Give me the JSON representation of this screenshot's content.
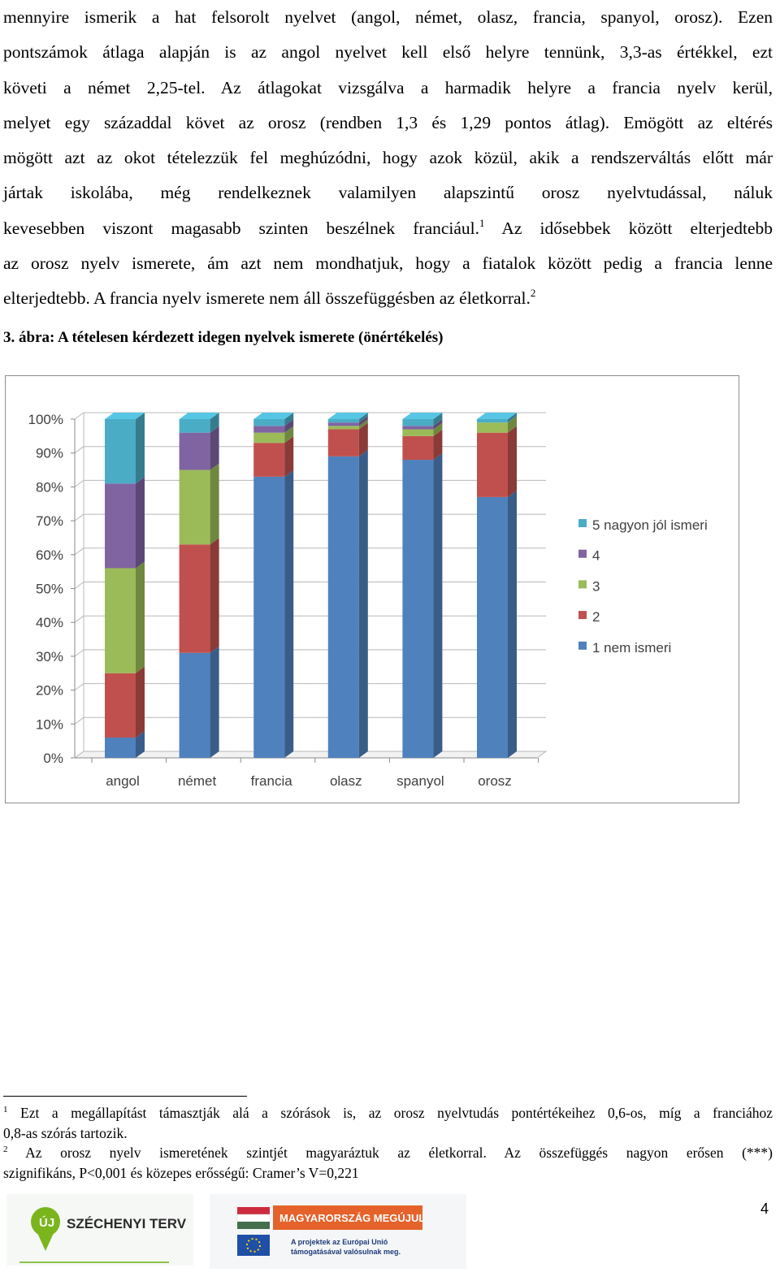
{
  "body_lines": [
    "mennyire ismerik a hat felsorolt nyelvet (angol, német, olasz, francia, spanyol, orosz). Ezen",
    "pontszámok átlaga alapján is az angol nyelvet kell első helyre tennünk, 3,3-as értékkel, ezt",
    "követi a német 2,25-tel. Az átlagokat vizsgálva a harmadik helyre a francia nyelv kerül,",
    "melyet egy századdal követ az orosz (rendben 1,3 és 1,29 pontos átlag). Emögött az eltérés",
    "mögött azt az okot tételezzük fel meghúzódni, hogy azok közül, akik a rendszerváltás előtt már",
    "jártak iskolába, még rendelkeznek valamilyen alapszintű orosz nyelvtudással, náluk",
    "kevesebben viszont magasabb szinten beszélnek franciául.",
    "Az idősebbek között elterjedtebb",
    "az orosz nyelv ismerete, ám azt nem mondhatjuk, hogy a fiatalok között pedig a francia lenne",
    "elterjedtebb. A francia nyelv ismerete nem áll összefüggésben az életkorral."
  ],
  "footnote_marks": [
    "1",
    "2"
  ],
  "figure_caption": "3. ábra: A tételesen kérdezett idegen nyelvek ismerete (önértékelés)",
  "chart_data": {
    "type": "bar",
    "stacked": true,
    "three_d": true,
    "categories": [
      "angol",
      "német",
      "francia",
      "olasz",
      "spanyol",
      "orosz"
    ],
    "series": [
      {
        "name": "1 nem ismeri",
        "color": "#4f81bd",
        "values": [
          6,
          31,
          83,
          89,
          88,
          77
        ]
      },
      {
        "name": "2",
        "color": "#c0504d",
        "values": [
          19,
          32,
          10,
          8,
          7,
          19
        ]
      },
      {
        "name": "3",
        "color": "#9bbb59",
        "values": [
          31,
          22,
          3,
          1,
          2,
          3
        ]
      },
      {
        "name": "4",
        "color": "#8064a2",
        "values": [
          25,
          11,
          2,
          1,
          1,
          0
        ]
      },
      {
        "name": "5 nagyon jól ismeri",
        "color": "#4bacc6",
        "values": [
          19,
          4,
          2,
          1,
          2,
          1
        ]
      }
    ],
    "yticks": [
      "0%",
      "10%",
      "20%",
      "30%",
      "40%",
      "50%",
      "60%",
      "70%",
      "80%",
      "90%",
      "100%"
    ],
    "ylim": [
      0,
      100
    ],
    "legend_position": "right"
  },
  "footnotes": [
    {
      "mark": "1",
      "lines": [
        "Ezt a megállapítást támasztják alá a szórások is, az orosz nyelvtudás pontértékeihez 0,6-os, míg a franciához",
        "0,8-as szórás tartozik."
      ]
    },
    {
      "mark": "2",
      "lines": [
        "Az orosz nyelv ismeretének szintjét magyaráztuk az életkorral. Az összefüggés nagyon erősen (***)",
        "szignifikáns, P<0,001 és közepes erősségű: Cramer’s V=0,221"
      ]
    }
  ],
  "logos": {
    "left": "SZÉCHENYI TERV",
    "right_top": "MAGYARORSZÁG MEGÚJUL",
    "right_bottom_1": "A projektek az Európai Unió",
    "right_bottom_2": "támogatásával valósulnak meg."
  },
  "page_number": "4"
}
